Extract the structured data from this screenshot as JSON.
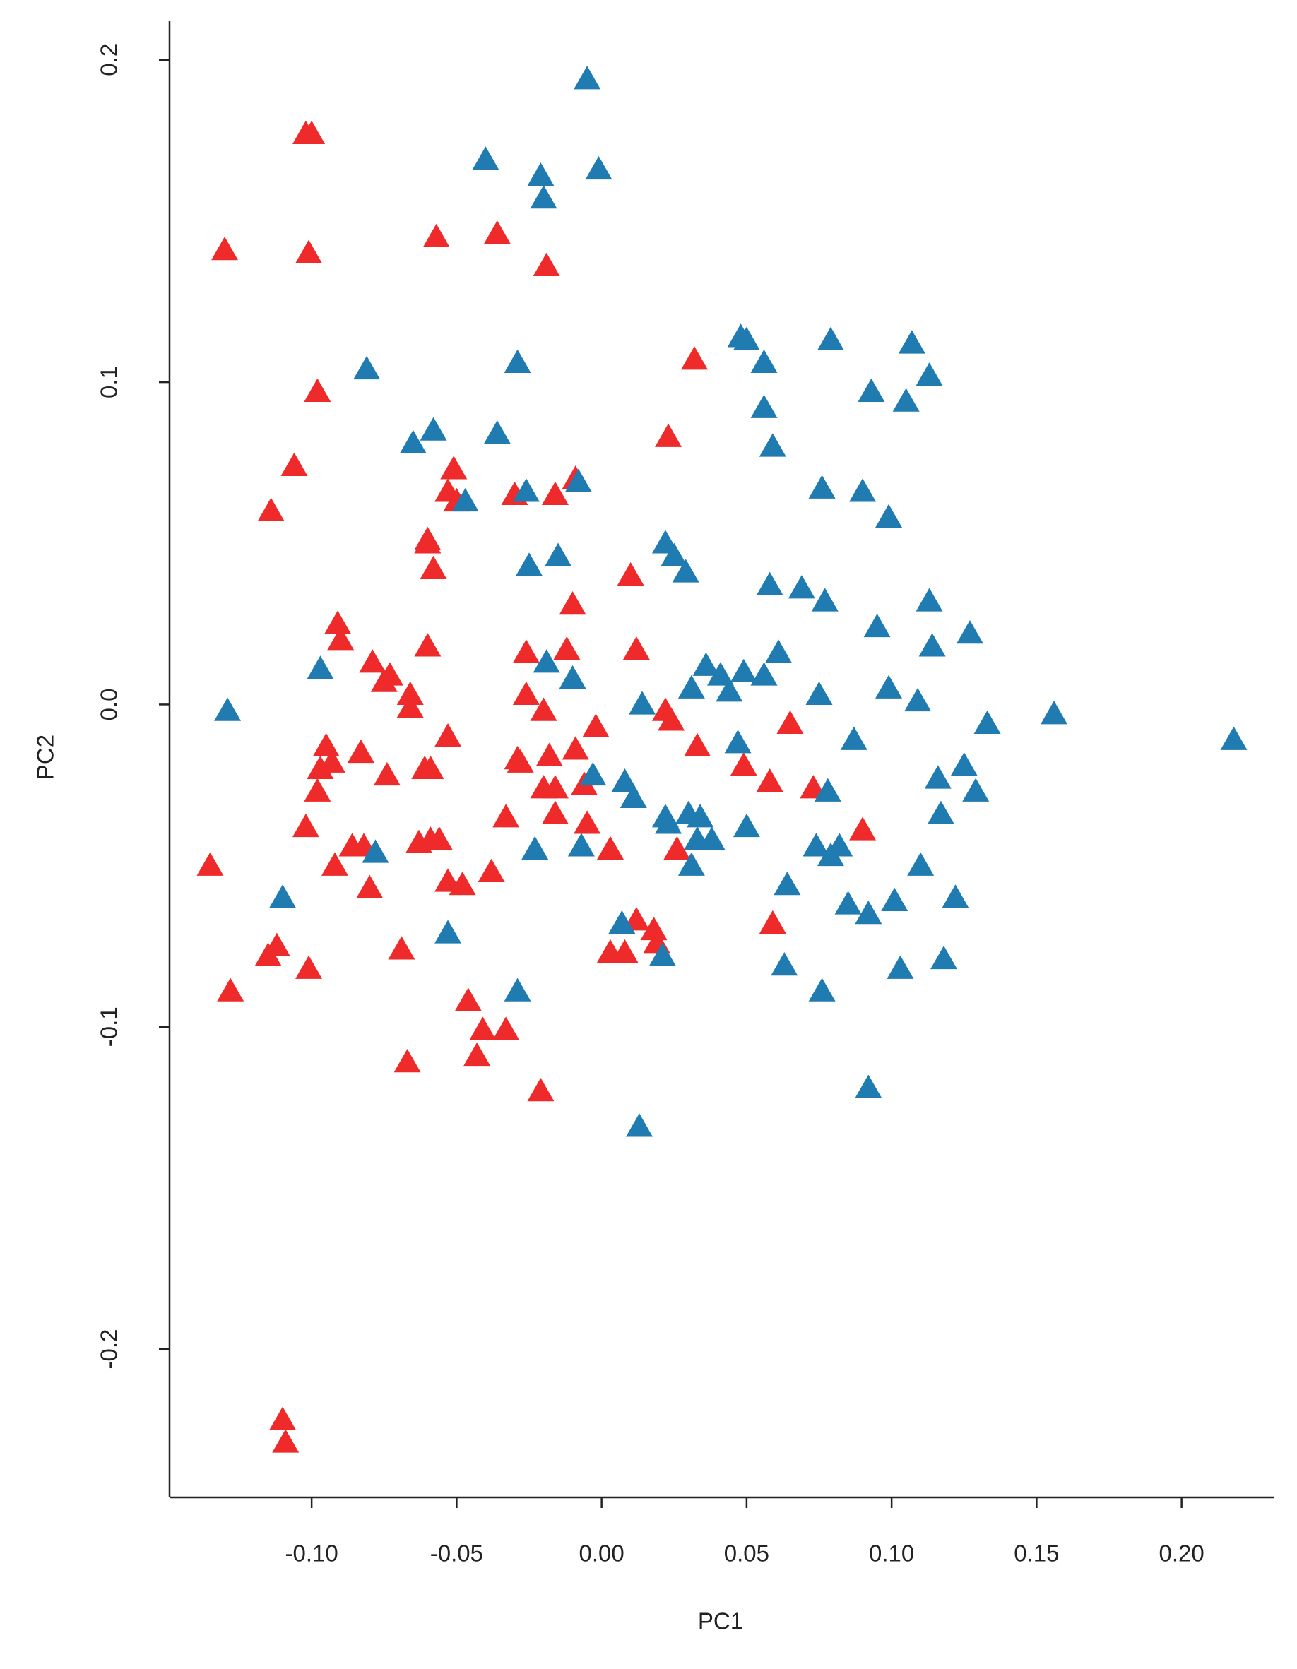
{
  "chart_data": {
    "type": "scatter",
    "marker": "triangle",
    "x_label": "PC1",
    "y_label": "PC2",
    "xlim": [
      -0.149,
      0.232
    ],
    "ylim": [
      -0.246,
      0.212
    ],
    "xticks": [
      {
        "value": -0.1,
        "label": "-0.10"
      },
      -0.05,
      {
        "value": 0,
        "label": "0.00"
      },
      0.05,
      {
        "value": 0.1,
        "label": "0.10"
      },
      0.15,
      {
        "value": 0.2,
        "label": "0.20"
      }
    ],
    "yticks": [
      -0.2,
      -0.1,
      {
        "value": 0,
        "label": "0.0"
      },
      0.1,
      0.2
    ],
    "series": [
      {
        "color": "#ee2a2a",
        "x": [
          -0.1,
          -0.102,
          -0.13,
          -0.101,
          -0.057,
          -0.036,
          -0.019,
          0.032,
          -0.098,
          -0.106,
          -0.114,
          -0.051,
          -0.053,
          -0.05,
          -0.009,
          -0.03,
          -0.016,
          -0.06,
          -0.06,
          -0.058,
          0.023,
          0.01,
          -0.01,
          -0.091,
          -0.09,
          -0.06,
          -0.026,
          -0.012,
          0.012,
          -0.079,
          -0.073,
          -0.075,
          -0.066,
          -0.066,
          -0.026,
          -0.02,
          0.022,
          0.024,
          0.065,
          -0.002,
          -0.095,
          -0.053,
          -0.083,
          0.033,
          -0.097,
          -0.093,
          -0.074,
          -0.029,
          -0.018,
          -0.009,
          -0.028,
          -0.061,
          -0.059,
          0.049,
          0.058,
          0.073,
          -0.098,
          -0.02,
          -0.016,
          -0.006,
          -0.033,
          -0.016,
          -0.005,
          -0.102,
          -0.086,
          -0.082,
          -0.063,
          -0.059,
          -0.056,
          0.09,
          0.026,
          0.003,
          -0.092,
          -0.08,
          -0.053,
          -0.048,
          -0.038,
          -0.135,
          0.012,
          0.018,
          0.019,
          0.059,
          -0.112,
          -0.115,
          -0.101,
          -0.069,
          0.003,
          0.008,
          -0.128,
          -0.046,
          -0.041,
          -0.033,
          -0.043,
          -0.067,
          -0.021,
          -0.11,
          -0.109
        ],
        "values": [
          0.177,
          0.177,
          0.141,
          0.14,
          0.145,
          0.146,
          0.136,
          0.107,
          0.097,
          0.074,
          0.06,
          0.073,
          0.066,
          0.063,
          0.07,
          0.065,
          0.065,
          0.051,
          0.05,
          0.042,
          0.083,
          0.04,
          0.031,
          0.025,
          0.02,
          0.018,
          0.016,
          0.017,
          0.017,
          0.013,
          0.009,
          0.007,
          0.003,
          -0.001,
          0.003,
          -0.002,
          -0.002,
          -0.005,
          -0.006,
          -0.007,
          -0.013,
          -0.01,
          -0.015,
          -0.013,
          -0.02,
          -0.018,
          -0.022,
          -0.017,
          -0.016,
          -0.014,
          -0.018,
          -0.02,
          -0.02,
          -0.019,
          -0.024,
          -0.026,
          -0.027,
          -0.026,
          -0.026,
          -0.025,
          -0.035,
          -0.034,
          -0.037,
          -0.038,
          -0.044,
          -0.044,
          -0.043,
          -0.042,
          -0.042,
          -0.039,
          -0.045,
          -0.045,
          -0.05,
          -0.057,
          -0.055,
          -0.056,
          -0.052,
          -0.05,
          -0.067,
          -0.07,
          -0.074,
          -0.068,
          -0.075,
          -0.078,
          -0.082,
          -0.076,
          -0.077,
          -0.077,
          -0.089,
          -0.092,
          -0.101,
          -0.101,
          -0.109,
          -0.111,
          -0.12,
          -0.222,
          -0.229
        ]
      },
      {
        "color": "#1f7bb0",
        "x": [
          -0.005,
          -0.001,
          -0.04,
          -0.021,
          -0.02,
          -0.029,
          -0.081,
          0.048,
          0.05,
          0.056,
          0.079,
          0.107,
          0.113,
          0.093,
          0.105,
          0.056,
          -0.058,
          -0.065,
          -0.036,
          0.059,
          -0.008,
          -0.026,
          -0.047,
          0.076,
          0.09,
          0.099,
          -0.015,
          -0.025,
          0.022,
          0.025,
          0.029,
          0.058,
          0.069,
          0.077,
          0.113,
          0.127,
          0.095,
          0.114,
          0.061,
          -0.097,
          -0.019,
          -0.01,
          0.036,
          0.041,
          0.049,
          0.056,
          0.044,
          0.031,
          0.099,
          0.109,
          0.075,
          0.014,
          -0.129,
          0.156,
          0.133,
          0.218,
          0.047,
          0.087,
          0.125,
          0.116,
          0.129,
          -0.003,
          0.008,
          0.011,
          0.078,
          0.03,
          0.022,
          0.034,
          0.023,
          0.117,
          0.038,
          0.05,
          0.033,
          -0.007,
          -0.023,
          -0.078,
          0.074,
          0.079,
          0.082,
          0.031,
          0.11,
          0.064,
          -0.11,
          0.122,
          0.085,
          0.101,
          0.092,
          0.007,
          -0.053,
          0.021,
          0.063,
          0.103,
          0.118,
          -0.029,
          0.076,
          0.092,
          0.013
        ],
        "values": [
          0.194,
          0.166,
          0.169,
          0.164,
          0.157,
          0.106,
          0.104,
          0.114,
          0.113,
          0.106,
          0.113,
          0.112,
          0.102,
          0.097,
          0.094,
          0.092,
          0.085,
          0.081,
          0.084,
          0.08,
          0.069,
          0.066,
          0.063,
          0.067,
          0.066,
          0.058,
          0.046,
          0.043,
          0.05,
          0.046,
          0.041,
          0.037,
          0.036,
          0.032,
          0.032,
          0.022,
          0.024,
          0.018,
          0.016,
          0.011,
          0.013,
          0.008,
          0.012,
          0.009,
          0.01,
          0.009,
          0.004,
          0.005,
          0.005,
          0.001,
          0.003,
          0,
          -0.002,
          -0.003,
          -0.006,
          -0.011,
          -0.012,
          -0.011,
          -0.019,
          -0.023,
          -0.027,
          -0.022,
          -0.024,
          -0.029,
          -0.027,
          -0.034,
          -0.035,
          -0.035,
          -0.037,
          -0.034,
          -0.042,
          -0.038,
          -0.042,
          -0.044,
          -0.045,
          -0.046,
          -0.044,
          -0.047,
          -0.044,
          -0.05,
          -0.05,
          -0.056,
          -0.06,
          -0.06,
          -0.062,
          -0.061,
          -0.065,
          -0.068,
          -0.071,
          -0.078,
          -0.081,
          -0.082,
          -0.079,
          -0.089,
          -0.089,
          -0.119,
          -0.131
        ]
      }
    ]
  }
}
